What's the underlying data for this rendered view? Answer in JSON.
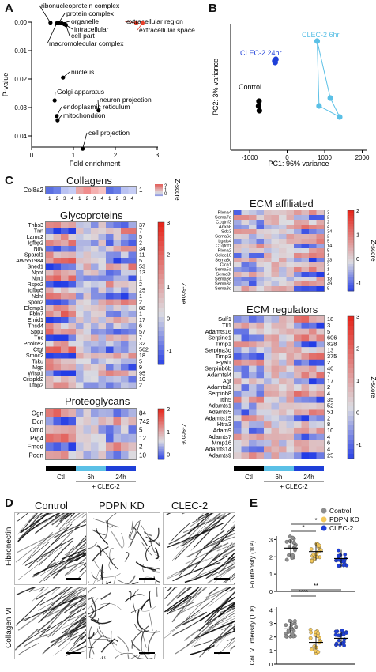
{
  "panels": {
    "A": "A",
    "B": "B",
    "C": "C",
    "D": "D",
    "E": "E"
  },
  "panelA": {
    "type": "scatter",
    "xlabel": "Fold enrichment",
    "ylabel": "P-value",
    "xticks": [
      "0",
      "1",
      "2",
      "3"
    ],
    "yticks": [
      "0.00",
      "0.01",
      "0.02",
      "0.03",
      "0.04"
    ],
    "points": [
      {
        "label": "ribonucleoprotein complex",
        "x": 0.45,
        "y": 0.0002,
        "color": "#000000"
      },
      {
        "label": "protein complex",
        "x": 0.65,
        "y": 0.0002,
        "color": "#000000"
      },
      {
        "label": "organelle",
        "x": 0.72,
        "y": 0.0004,
        "color": "#000000"
      },
      {
        "label": "intracellular",
        "x": 0.78,
        "y": 0.0007,
        "color": "#000000"
      },
      {
        "label": "cell part",
        "x": 0.82,
        "y": 0.001,
        "color": "#000000"
      },
      {
        "label": "macromolecular complex",
        "x": 0.6,
        "y": 0.0004,
        "color": "#000000"
      },
      {
        "label": "extracellular region",
        "x": 2.5,
        "y": 0.0003,
        "color": "#e8402a"
      },
      {
        "label": "extracellular space",
        "x": 2.65,
        "y": 0.0003,
        "color": "#e8402a"
      },
      {
        "label": "nucleus",
        "x": 0.75,
        "y": 0.0195,
        "color": "#000000"
      },
      {
        "label": "Golgi apparatus",
        "x": 0.55,
        "y": 0.0275,
        "color": "#000000"
      },
      {
        "label": "neuron projection",
        "x": 1.6,
        "y": 0.031,
        "color": "#000000"
      },
      {
        "label": "endoplasmic reticulum",
        "x": 0.6,
        "y": 0.033,
        "color": "#000000"
      },
      {
        "label": "mitochondrion",
        "x": 0.62,
        "y": 0.0345,
        "color": "#000000"
      },
      {
        "label": "cell projection",
        "x": 1.22,
        "y": 0.0445,
        "color": "#000000"
      }
    ]
  },
  "panelB": {
    "type": "scatter",
    "xlabel": "PC1: 96% variance",
    "ylabel": "PC2: 3% variance",
    "xticks": [
      "-1000",
      "0",
      "1000",
      "2000"
    ],
    "groups": [
      {
        "name": "Control",
        "color": "#000000",
        "points": [
          [
            -750,
            -90
          ],
          [
            -760,
            -120
          ],
          [
            -740,
            -150
          ]
        ]
      },
      {
        "name": "CLEC-2 24hr",
        "color": "#1e3fd8",
        "points": [
          [
            -330,
            165
          ],
          [
            -300,
            175
          ],
          [
            -320,
            155
          ]
        ]
      },
      {
        "name": "CLEC-2 6hr",
        "color": "#5bc0e6",
        "points": [
          [
            800,
            290
          ],
          [
            1150,
            -70
          ],
          [
            1400,
            -190
          ],
          [
            850,
            -120
          ]
        ]
      }
    ]
  },
  "panelC": {
    "collagens": {
      "title": "Collagens",
      "genes": [
        "Col8a2"
      ],
      "nums": [
        "1"
      ],
      "colors": [
        "#5a6fe0",
        "#6b80e8",
        "#b9c2f2",
        "#c6cdf5",
        "#e8a5a5",
        "#f08c8c",
        "#f4b0b0",
        "#f6c3c3"
      ]
    },
    "glycoproteins": {
      "title": "Glycoproteins",
      "genes": [
        "Thbs3",
        "Tnn",
        "Lamc2",
        "Igfbp2",
        "Nov",
        "Sparcl1",
        "AW551984",
        "Sned1",
        "Npnt",
        "Ntn1",
        "Rspo2",
        "Igfbp5",
        "Ndnf",
        "Spon2",
        "Efemp1",
        "Fbln7",
        "Emid1",
        "Thsd4",
        "Spp1",
        "Tnc",
        "Pcolce2",
        "Ctgf",
        "Smoc2",
        "Tsku",
        "Mgp",
        "Wisp1",
        "Crispld2",
        "Ltbp2"
      ],
      "nums": [
        "37",
        "7",
        "5",
        "2",
        "34",
        "11",
        "5",
        "53",
        "13",
        "1",
        "2",
        "25",
        "1",
        "2",
        "88",
        "1",
        "17",
        "6",
        "57",
        "7",
        "32",
        "562",
        "18",
        "5",
        "9",
        "95",
        "10",
        "2"
      ]
    },
    "proteoglycans": {
      "title": "Proteoglycans",
      "genes": [
        "Ogn",
        "Dcn",
        "Omd",
        "Prg4",
        "Fmod",
        "Podn"
      ],
      "nums": [
        "84",
        "742",
        "5",
        "12",
        "2",
        "10"
      ]
    },
    "ecm_affiliated": {
      "title": "ECM affiliated",
      "genes": [
        "Plxna4",
        "Sema7a",
        "C1qtnf3",
        "Anxa8",
        "Sdc3",
        "Sema6c",
        "Lgals4",
        "C1qtnf1",
        "Plxna2",
        "Colec10",
        "Sema3c",
        "Clca1",
        "Sema5a",
        "Sema3f",
        "Sema3e",
        "Sema3a",
        "Sema3d"
      ],
      "nums": [
        "3",
        "2",
        "2",
        "4",
        "34",
        "2",
        "5",
        "14",
        "5",
        "1",
        "23",
        "2",
        "1",
        "4",
        "13",
        "49",
        "8"
      ]
    },
    "ecm_regulators": {
      "title": "ECM regulators",
      "genes": [
        "Sulf1",
        "Tll1",
        "Adamts16",
        "Serpine1",
        "Timp1",
        "Serpina3g",
        "Timp3",
        "Hyal1",
        "Serpinb6b",
        "Adamtsl4",
        "Agt",
        "Adamtsl1",
        "Serpinb8",
        "Itih5",
        "Adamts1",
        "Adamts5",
        "Adamts15",
        "Htra3",
        "Adam9",
        "Adamts7",
        "Mmp16",
        "Adamts14",
        "Adamts9"
      ],
      "nums": [
        "18",
        "3",
        "5",
        "606",
        "828",
        "13",
        "375",
        "2",
        "40",
        "7",
        "17",
        "2",
        "4",
        "35",
        "52",
        "51",
        "2",
        "8",
        "10",
        "4",
        "6",
        "4",
        "25"
      ]
    },
    "zscore_label": "Z-score",
    "scale_ticks_major": [
      "3",
      "2",
      "1",
      "0",
      "-1"
    ],
    "scale_ticks_small": [
      "2",
      "1",
      "0"
    ],
    "col_numbers": [
      "1",
      "2",
      "3",
      "4",
      "1",
      "2",
      "3",
      "4",
      "1",
      "2",
      "3",
      "4"
    ],
    "conditions": {
      "ctl": "Ctl",
      "h6": "6h",
      "h24": "24h",
      "treatment": "+ CLEC-2"
    }
  },
  "panelD": {
    "col_titles": [
      "Control",
      "PDPN KD",
      "CLEC-2"
    ],
    "row_titles": [
      "Fibronectin",
      "Collagen VI"
    ]
  },
  "panelE": {
    "legend": [
      {
        "name": "Control",
        "color": "#8e8e8e"
      },
      {
        "name": "PDPN KD",
        "color": "#f3c85b"
      },
      {
        "name": "CLEC-2",
        "color": "#1e3fd8"
      }
    ],
    "fn": {
      "ylabel": "Fn intensity (10²)",
      "yticks": [
        "0",
        "1",
        "2",
        "3"
      ],
      "sig": [
        "*",
        "*"
      ],
      "means": [
        2.5,
        2.3,
        1.9
      ]
    },
    "col6": {
      "ylabel": "Col. VI intensity (10²)",
      "yticks": [
        "0",
        "1",
        "2",
        "3",
        "4"
      ],
      "sig": [
        "****",
        "**"
      ],
      "means": [
        2.6,
        1.6,
        1.9
      ]
    }
  }
}
